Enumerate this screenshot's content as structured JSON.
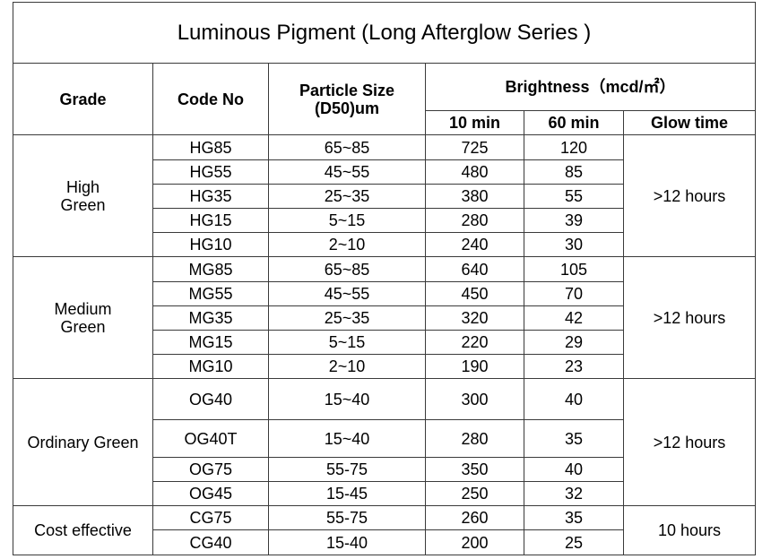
{
  "title": "Luminous Pigment (Long Afterglow Series )",
  "headers": {
    "grade": "Grade",
    "code_no": "Code No",
    "particle_size_line1": "Particle Size",
    "particle_size_line2": "(D50)um",
    "brightness": "Brightness（mcd/㎡）",
    "min10": "10 min",
    "min60": "60 min",
    "glow_time": "Glow time"
  },
  "groups": [
    {
      "grade_line1": "High",
      "grade_line2": "Green",
      "glow_time": ">12 hours",
      "rows": [
        {
          "code": "HG85",
          "size": "65~85",
          "b10": "725",
          "b60": "120"
        },
        {
          "code": "HG55",
          "size": "45~55",
          "b10": "480",
          "b60": "85"
        },
        {
          "code": "HG35",
          "size": "25~35",
          "b10": "380",
          "b60": "55"
        },
        {
          "code": "HG15",
          "size": "5~15",
          "b10": "280",
          "b60": "39"
        },
        {
          "code": "HG10",
          "size": "2~10",
          "b10": "240",
          "b60": "30"
        }
      ]
    },
    {
      "grade_line1": "Medium",
      "grade_line2": "Green",
      "glow_time": ">12 hours",
      "rows": [
        {
          "code": "MG85",
          "size": "65~85",
          "b10": "640",
          "b60": "105"
        },
        {
          "code": "MG55",
          "size": "45~55",
          "b10": "450",
          "b60": "70"
        },
        {
          "code": "MG35",
          "size": "25~35",
          "b10": "320",
          "b60": "42"
        },
        {
          "code": "MG15",
          "size": "5~15",
          "b10": "220",
          "b60": "29"
        },
        {
          "code": "MG10",
          "size": "2~10",
          "b10": "190",
          "b60": "23"
        }
      ]
    },
    {
      "grade_line1": "Ordinary Green",
      "grade_line2": "",
      "glow_time": ">12 hours",
      "rows": [
        {
          "code": "OG40",
          "size": "15~40",
          "b10": "300",
          "b60": "40"
        },
        {
          "code": "OG40T",
          "size": "15~40",
          "b10": "280",
          "b60": "35"
        },
        {
          "code": "OG75",
          "size": "55-75",
          "b10": "350",
          "b60": "40"
        },
        {
          "code": "OG45",
          "size": "15-45",
          "b10": "250",
          "b60": "32"
        }
      ]
    },
    {
      "grade_line1": "Cost effective",
      "grade_line2": "",
      "glow_time": "10 hours",
      "rows": [
        {
          "code": "CG75",
          "size": "55-75",
          "b10": "260",
          "b60": "35"
        },
        {
          "code": "CG40",
          "size": "15-40",
          "b10": "200",
          "b60": "25"
        }
      ]
    }
  ]
}
